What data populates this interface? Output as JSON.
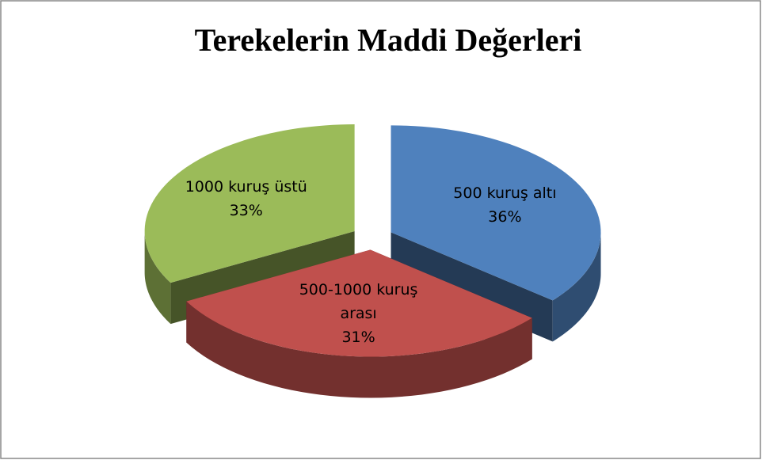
{
  "chart_data": {
    "type": "pie",
    "title": "Terekelerin Maddi Değerleri",
    "categories": [
      "500 kuruş altı",
      "500-1000 kuruş arası",
      "1000 kuruş üstü"
    ],
    "values": [
      36,
      31,
      33
    ],
    "value_labels": [
      "36%",
      "31%",
      "33%"
    ],
    "colors": [
      "#4f81bd",
      "#c0504d",
      "#9bbb59"
    ]
  }
}
